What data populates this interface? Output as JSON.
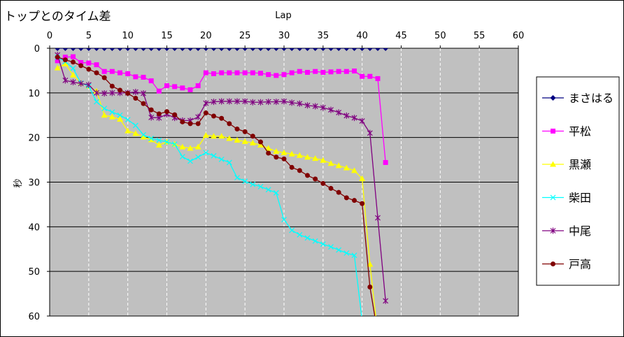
{
  "chart_data": {
    "type": "line",
    "title": "トップとのタイム差",
    "xlabel": "Lap",
    "ylabel": "秒",
    "xlim": [
      0,
      60
    ],
    "ylim": [
      0,
      60
    ],
    "y_inverted": true,
    "x_axis_position": "top",
    "xticks": [
      0,
      5,
      10,
      15,
      20,
      25,
      30,
      35,
      40,
      45,
      50,
      55,
      60
    ],
    "yticks": [
      0,
      10,
      20,
      30,
      40,
      50,
      60
    ],
    "grid": "vertical dashed, horizontal solid",
    "plot_background": "#c0c0c0",
    "legend_position": "right",
    "series": [
      {
        "name": "まさはる",
        "color": "#000080",
        "marker": "diamond",
        "x": [
          1,
          2,
          3,
          4,
          5,
          6,
          7,
          8,
          9,
          10,
          11,
          12,
          13,
          14,
          15,
          16,
          17,
          18,
          19,
          20,
          21,
          22,
          23,
          24,
          25,
          26,
          27,
          28,
          29,
          30,
          31,
          32,
          33,
          34,
          35,
          36,
          37,
          38,
          39,
          40,
          41,
          42,
          43
        ],
        "values": [
          0,
          0,
          0,
          0,
          0,
          0,
          0,
          0,
          0,
          0,
          0,
          0,
          0,
          0,
          0,
          0,
          0,
          0,
          0,
          0,
          0,
          0,
          0,
          0,
          0,
          0,
          0,
          0,
          0,
          0,
          0,
          0,
          0,
          0,
          0,
          0,
          0,
          0,
          0,
          0,
          0,
          0,
          0
        ]
      },
      {
        "name": "平松",
        "color": "#ff00ff",
        "marker": "square",
        "x": [
          1,
          2,
          3,
          4,
          5,
          6,
          7,
          8,
          9,
          10,
          11,
          12,
          13,
          14,
          15,
          16,
          17,
          18,
          19,
          20,
          21,
          22,
          23,
          24,
          25,
          26,
          27,
          28,
          29,
          30,
          31,
          32,
          33,
          34,
          35,
          36,
          37,
          38,
          39,
          40,
          41,
          42,
          43
        ],
        "values": [
          2.8,
          2.0,
          1.9,
          3.2,
          3.3,
          3.7,
          5.2,
          5.2,
          5.5,
          5.7,
          6.4,
          6.5,
          7.3,
          9.6,
          8.4,
          8.6,
          8.9,
          9.3,
          8.4,
          5.5,
          5.7,
          5.5,
          5.5,
          5.5,
          5.5,
          5.5,
          5.6,
          5.9,
          6.1,
          5.9,
          5.5,
          5.2,
          5.4,
          5.2,
          5.4,
          5.3,
          5.2,
          5.2,
          5.1,
          6.3,
          6.3,
          6.8,
          25.6
        ]
      },
      {
        "name": "黒瀬",
        "color": "#ffff00",
        "marker": "triangle",
        "x": [
          1,
          2,
          3,
          4,
          5,
          6,
          7,
          8,
          9,
          10,
          11,
          12,
          13,
          14,
          15,
          16,
          17,
          18,
          19,
          20,
          21,
          22,
          23,
          24,
          25,
          26,
          27,
          28,
          29,
          30,
          31,
          32,
          33,
          34,
          35,
          36,
          37,
          38,
          39,
          40,
          41,
          42
        ],
        "values": [
          4.4,
          3.5,
          6.0,
          7.8,
          8.5,
          9.6,
          15.0,
          15.4,
          15.9,
          18.5,
          19.1,
          19.9,
          20.5,
          21.7,
          21.0,
          21.5,
          22.1,
          22.4,
          22.1,
          19.5,
          19.7,
          19.7,
          20.2,
          20.6,
          20.9,
          21.2,
          21.7,
          22.4,
          23.1,
          23.4,
          23.7,
          24.0,
          24.4,
          24.7,
          25.1,
          25.8,
          26.3,
          26.8,
          27.4,
          29.2,
          48.4,
          64.0
        ]
      },
      {
        "name": "柴田",
        "color": "#00ffff",
        "marker": "x",
        "x": [
          1,
          2,
          3,
          4,
          5,
          6,
          7,
          8,
          9,
          10,
          11,
          12,
          13,
          14,
          15,
          16,
          17,
          18,
          19,
          20,
          21,
          22,
          23,
          24,
          25,
          26,
          27,
          28,
          29,
          30,
          31,
          32,
          33,
          34,
          35,
          36,
          37,
          38,
          39,
          40
        ],
        "values": [
          2.0,
          3.0,
          4.5,
          7.8,
          8.5,
          12.0,
          13.5,
          14.3,
          15.0,
          16.0,
          17.3,
          19.4,
          20.2,
          20.6,
          21.0,
          21.5,
          24.3,
          25.3,
          24.4,
          23.4,
          24.1,
          24.9,
          25.6,
          29.0,
          29.8,
          30.5,
          31.0,
          31.7,
          32.4,
          38.4,
          40.8,
          41.8,
          42.5,
          43.2,
          43.9,
          44.5,
          45.2,
          45.9,
          46.4,
          61.0
        ]
      },
      {
        "name": "中尾",
        "color": "#800080",
        "marker": "star",
        "x": [
          1,
          2,
          3,
          4,
          5,
          6,
          7,
          8,
          9,
          10,
          11,
          12,
          13,
          14,
          15,
          16,
          17,
          18,
          19,
          20,
          21,
          22,
          23,
          24,
          25,
          26,
          27,
          28,
          29,
          30,
          31,
          32,
          33,
          34,
          35,
          36,
          37,
          38,
          39,
          40,
          41,
          42,
          43
        ],
        "values": [
          1.5,
          7.2,
          7.6,
          7.9,
          8.2,
          10.0,
          10.1,
          10.0,
          10.0,
          10.0,
          9.8,
          10.1,
          15.5,
          15.6,
          14.8,
          15.6,
          16.2,
          16.2,
          15.4,
          12.3,
          12.0,
          11.9,
          11.9,
          11.9,
          11.9,
          12.1,
          12.1,
          12.0,
          12.0,
          11.9,
          12.2,
          12.4,
          12.8,
          13.0,
          13.3,
          13.8,
          14.4,
          15.1,
          15.6,
          16.3,
          19.0,
          38.0,
          56.6
        ]
      },
      {
        "name": "戸高",
        "color": "#800000",
        "marker": "circle",
        "x": [
          1,
          2,
          3,
          4,
          5,
          6,
          7,
          8,
          9,
          10,
          11,
          12,
          13,
          14,
          15,
          16,
          17,
          18,
          19,
          20,
          21,
          22,
          23,
          24,
          25,
          26,
          27,
          28,
          29,
          30,
          31,
          32,
          33,
          34,
          35,
          36,
          37,
          38,
          39,
          40,
          41,
          42
        ],
        "values": [
          2.0,
          2.6,
          3.1,
          3.9,
          4.7,
          5.5,
          6.6,
          8.5,
          9.4,
          10.1,
          11.2,
          12.4,
          13.8,
          14.7,
          14.2,
          14.9,
          16.5,
          16.9,
          16.9,
          14.5,
          15.2,
          15.7,
          16.9,
          18.1,
          18.7,
          19.7,
          21.0,
          23.5,
          24.4,
          24.8,
          26.7,
          27.4,
          28.5,
          29.3,
          30.3,
          31.4,
          32.3,
          33.5,
          34.1,
          34.8,
          53.5,
          64.0
        ]
      }
    ]
  }
}
